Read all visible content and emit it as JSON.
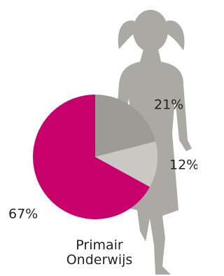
{
  "chart_data": {
    "type": "pie",
    "title": "Primair Onderwijs",
    "values": [
      21,
      12,
      67
    ],
    "value_labels": [
      "21%",
      "12%",
      "67%"
    ],
    "colors": [
      "#9c9b95",
      "#c9c8c2",
      "#c8006c"
    ]
  }
}
